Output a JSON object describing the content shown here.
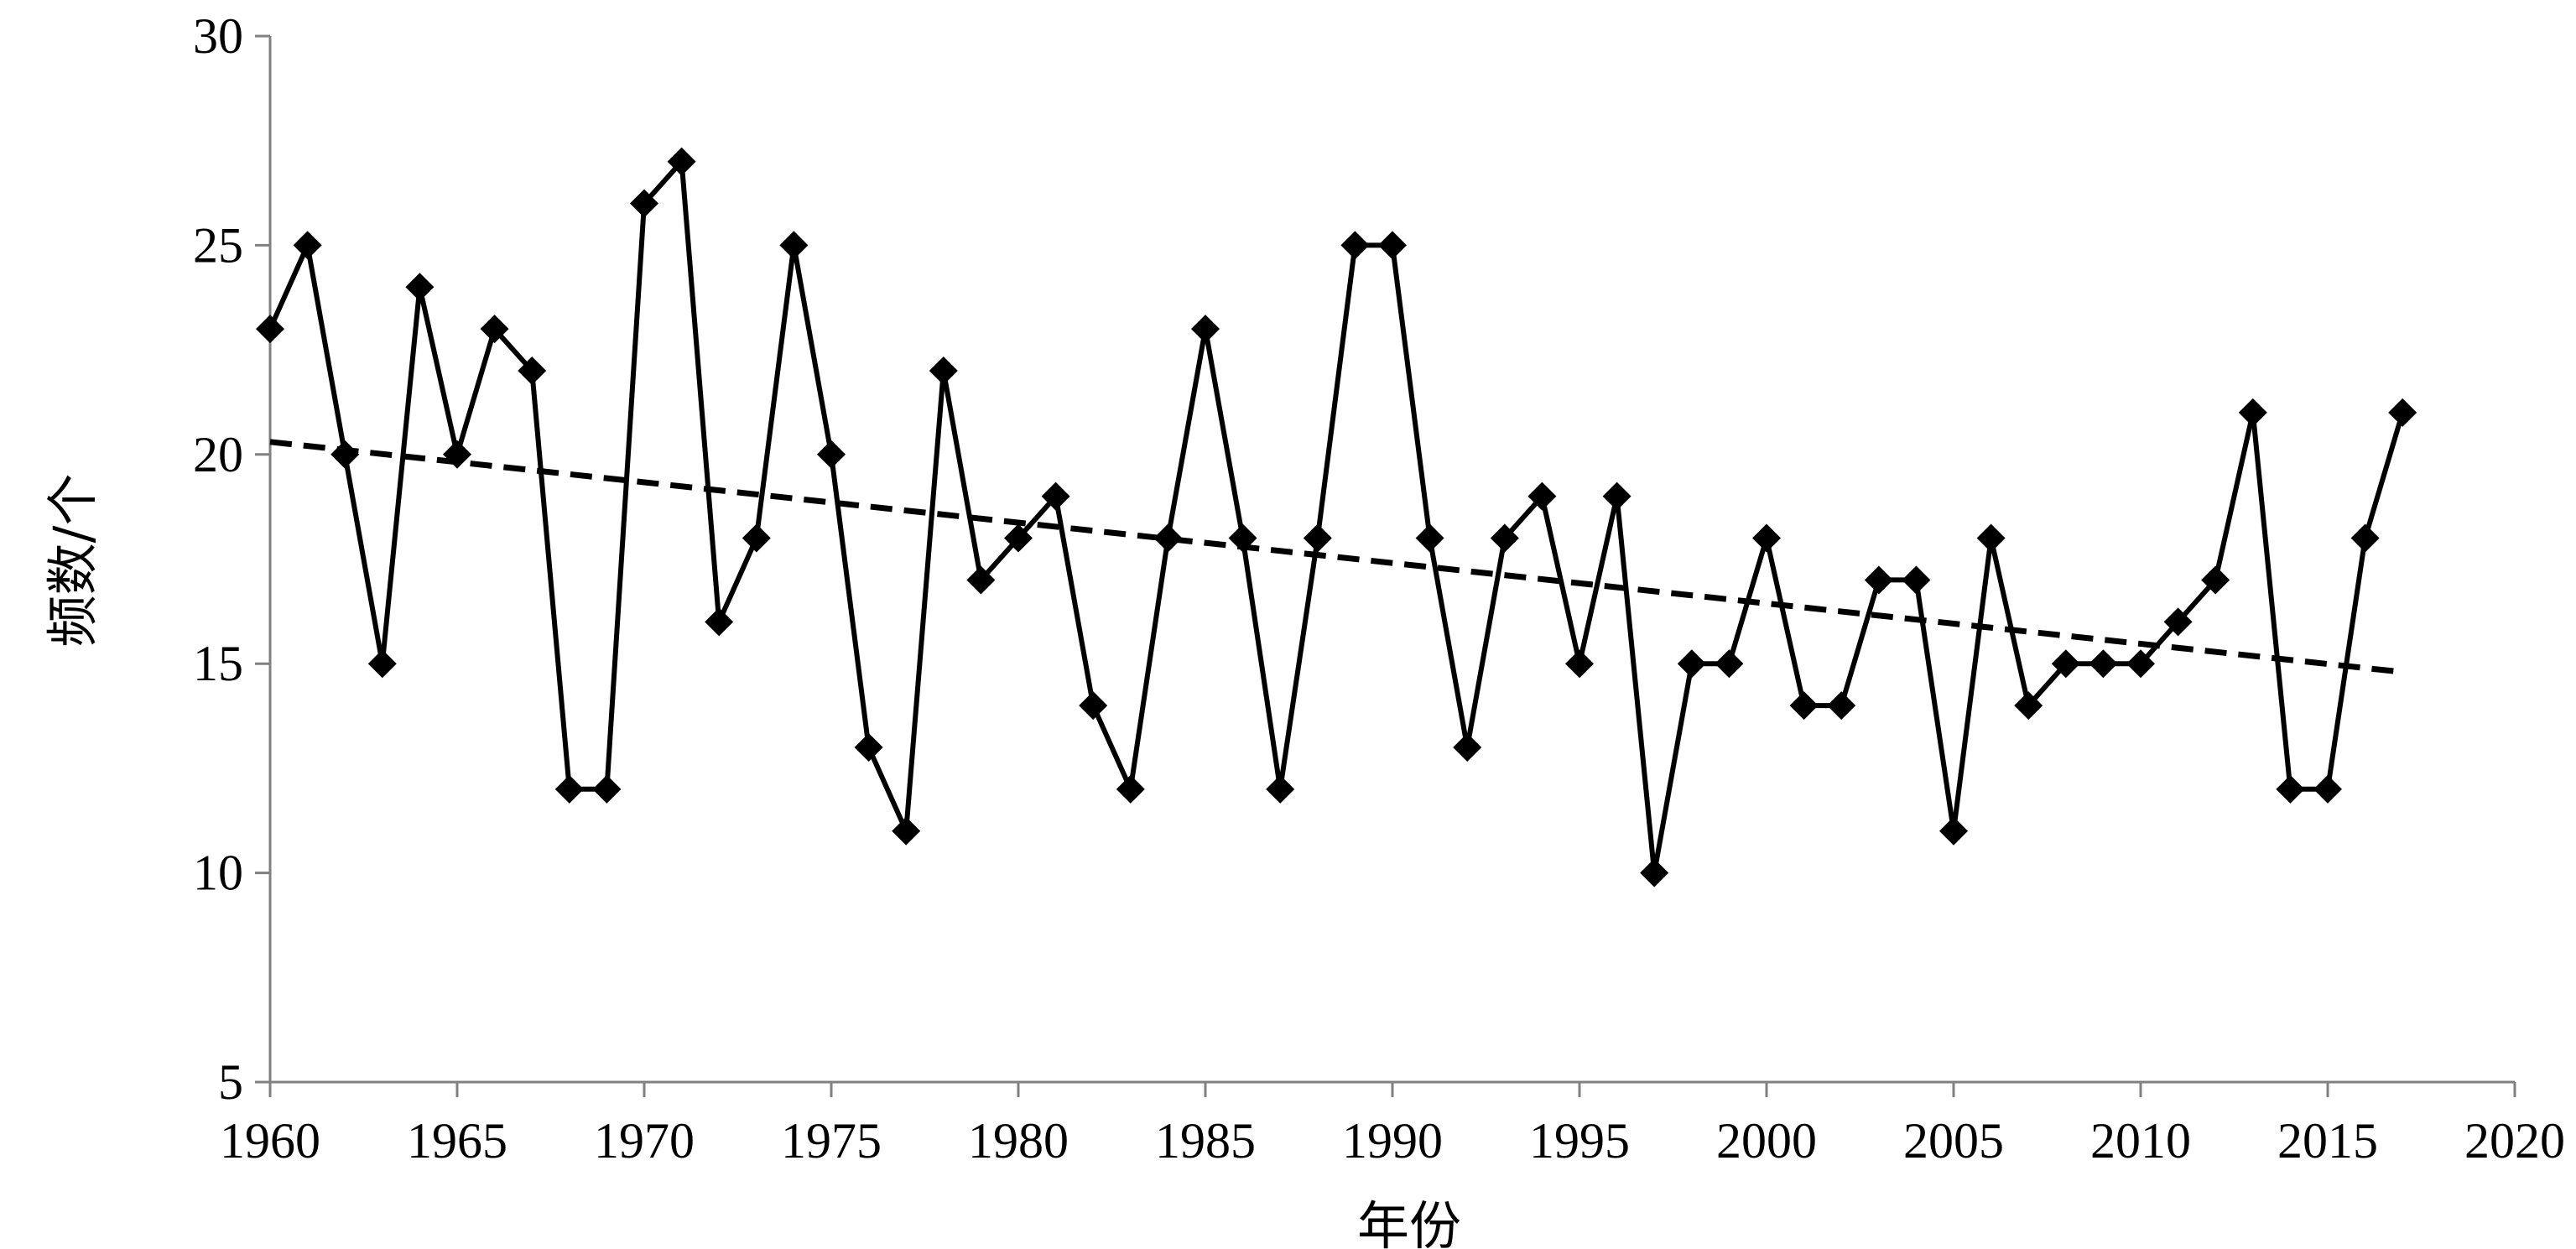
{
  "chart_data": {
    "type": "line",
    "title": "",
    "xlabel": "年份",
    "ylabel": "频数/个",
    "xlim": [
      1960,
      2020
    ],
    "ylim": [
      5,
      30
    ],
    "x_ticks": [
      "1960",
      "1965",
      "1970",
      "1975",
      "1980",
      "1985",
      "1990",
      "1995",
      "2000",
      "2005",
      "2010",
      "2015",
      "2020"
    ],
    "y_ticks": [
      "5",
      "10",
      "15",
      "20",
      "25",
      "30"
    ],
    "grid": false,
    "legend": "none",
    "series": [
      {
        "style": "solid",
        "marker": "diamond",
        "color": "#000000",
        "x": [
          1960,
          1961,
          1962,
          1963,
          1964,
          1965,
          1966,
          1967,
          1968,
          1969,
          1970,
          1971,
          1972,
          1973,
          1974,
          1975,
          1976,
          1977,
          1978,
          1979,
          1980,
          1981,
          1982,
          1983,
          1984,
          1985,
          1986,
          1987,
          1988,
          1989,
          1990,
          1991,
          1992,
          1993,
          1994,
          1995,
          1996,
          1997,
          1998,
          1999,
          2000,
          2001,
          2002,
          2003,
          2004,
          2005,
          2006,
          2007,
          2008,
          2009,
          2010,
          2011,
          2012,
          2013,
          2014,
          2015,
          2016,
          2017
        ],
        "y": [
          23,
          25,
          20,
          15,
          24,
          20,
          23,
          22,
          12,
          12,
          26,
          27,
          16,
          18,
          25,
          20,
          13,
          11,
          22,
          17,
          18,
          19,
          14,
          12,
          18,
          23,
          18,
          12,
          18,
          25,
          25,
          18,
          13,
          18,
          19,
          15,
          19,
          10,
          15,
          15,
          18,
          14,
          14,
          17,
          17,
          11,
          18,
          14,
          15,
          15,
          15,
          16,
          17,
          21,
          12,
          12,
          18,
          21
        ]
      },
      {
        "style": "dashed",
        "marker": "none",
        "color": "#000000",
        "x": [
          1960,
          2017
        ],
        "y": [
          20.3,
          14.8
        ]
      }
    ]
  }
}
